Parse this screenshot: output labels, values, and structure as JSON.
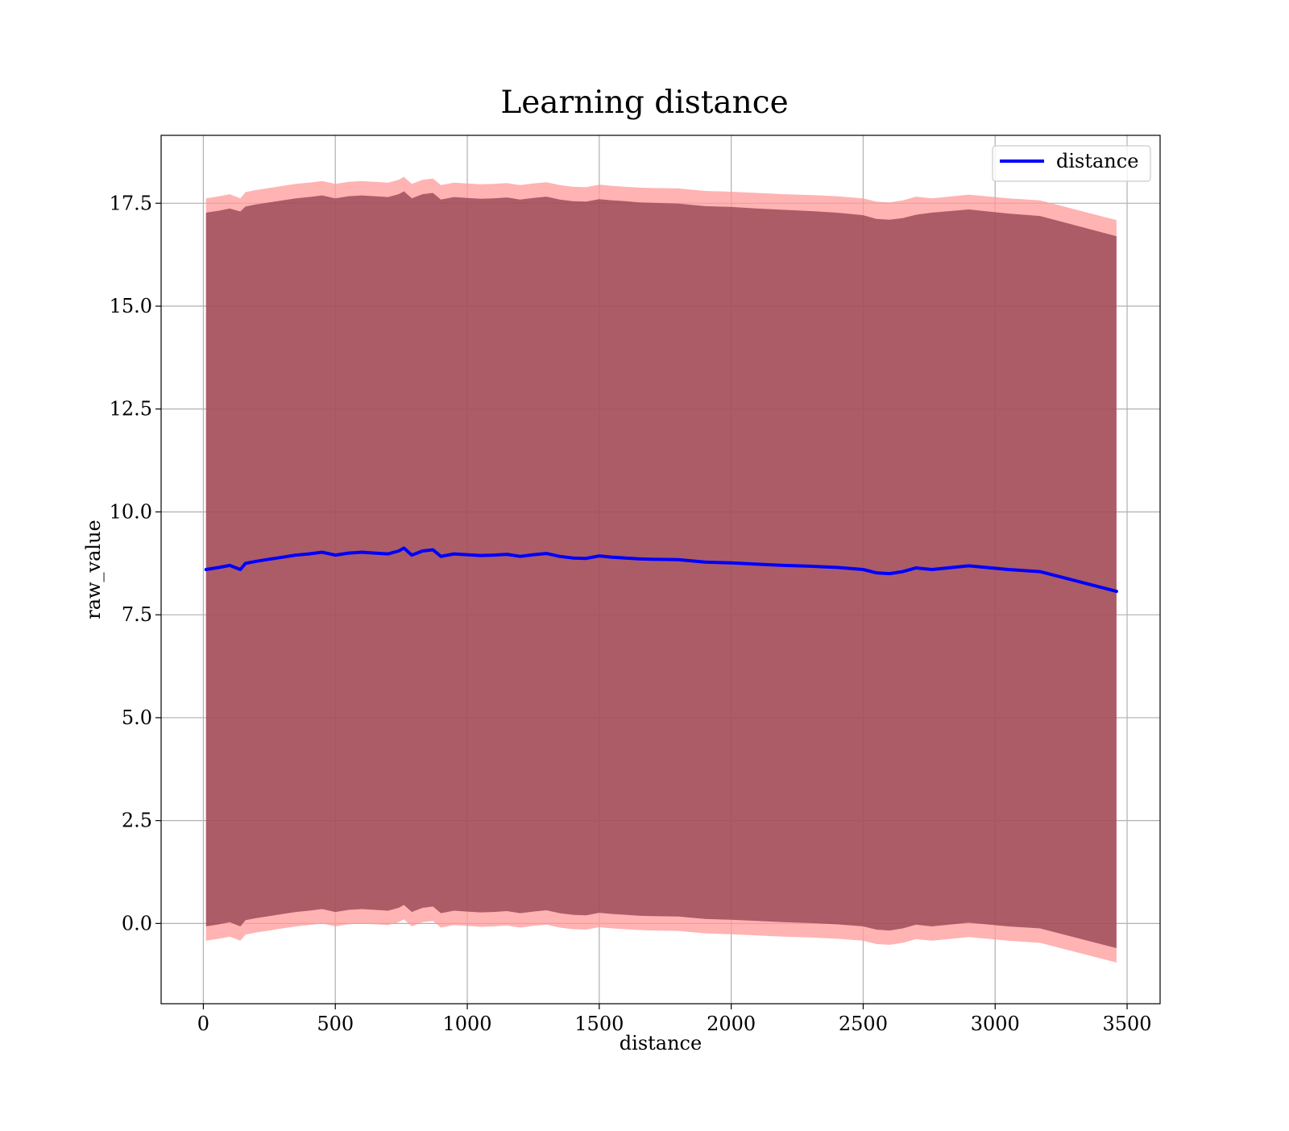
{
  "chart_data": {
    "type": "line",
    "title": "Learning distance",
    "xlabel": "distance",
    "ylabel": "raw_value",
    "xlim": [
      -160,
      3625
    ],
    "ylim": [
      -1.95,
      19.15
    ],
    "x_ticks": [
      0,
      500,
      1000,
      1500,
      2000,
      2500,
      3000,
      3500
    ],
    "y_ticks": [
      0.0,
      2.5,
      5.0,
      7.5,
      10.0,
      12.5,
      15.0,
      17.5
    ],
    "x_tick_labels": [
      "0",
      "500",
      "1000",
      "1500",
      "2000",
      "2500",
      "3000",
      "3500"
    ],
    "y_tick_labels": [
      "0.0",
      "2.5",
      "5.0",
      "7.5",
      "10.0",
      "12.5",
      "15.0",
      "17.5"
    ],
    "grid": true,
    "legend_position": "top-right",
    "colors": {
      "line": "#0000ff",
      "outer_band": "#ff9999",
      "inner_band": "#8b3a4a",
      "grid": "#b0b0b0"
    },
    "series": [
      {
        "name": "distance",
        "x": [
          10,
          60,
          100,
          140,
          160,
          200,
          250,
          300,
          350,
          400,
          450,
          500,
          550,
          600,
          650,
          700,
          740,
          760,
          790,
          830,
          870,
          900,
          950,
          1000,
          1050,
          1100,
          1150,
          1200,
          1250,
          1300,
          1350,
          1400,
          1450,
          1500,
          1550,
          1600,
          1650,
          1700,
          1800,
          1900,
          2000,
          2100,
          2200,
          2300,
          2400,
          2500,
          2550,
          2600,
          2650,
          2700,
          2760,
          2900,
          3050,
          3170,
          3460
        ],
        "y": [
          8.6,
          8.65,
          8.7,
          8.6,
          8.75,
          8.8,
          8.85,
          8.9,
          8.95,
          8.98,
          9.02,
          8.95,
          9.0,
          9.02,
          9.0,
          8.98,
          9.05,
          9.12,
          8.95,
          9.05,
          9.08,
          8.92,
          8.98,
          8.96,
          8.94,
          8.95,
          8.97,
          8.92,
          8.96,
          8.99,
          8.92,
          8.88,
          8.87,
          8.93,
          8.9,
          8.88,
          8.86,
          8.85,
          8.84,
          8.78,
          8.76,
          8.73,
          8.7,
          8.68,
          8.65,
          8.6,
          8.52,
          8.5,
          8.55,
          8.64,
          8.6,
          8.69,
          8.6,
          8.55,
          8.07
        ]
      }
    ],
    "bands": [
      {
        "role": "outer",
        "x": [
          10,
          60,
          100,
          140,
          160,
          200,
          250,
          300,
          350,
          400,
          450,
          500,
          550,
          600,
          650,
          700,
          740,
          760,
          790,
          830,
          870,
          900,
          950,
          1000,
          1050,
          1100,
          1150,
          1200,
          1250,
          1300,
          1350,
          1400,
          1450,
          1500,
          1550,
          1600,
          1650,
          1700,
          1800,
          1900,
          2000,
          2100,
          2200,
          2300,
          2400,
          2500,
          2550,
          2600,
          2650,
          2700,
          2760,
          2900,
          3050,
          3170,
          3460
        ],
        "upper": [
          17.62,
          17.67,
          17.72,
          17.62,
          17.77,
          17.82,
          17.87,
          17.92,
          17.97,
          18.0,
          18.04,
          17.97,
          18.02,
          18.04,
          18.02,
          18.0,
          18.07,
          18.14,
          17.97,
          18.07,
          18.1,
          17.94,
          18.0,
          17.98,
          17.96,
          17.97,
          17.99,
          17.94,
          17.98,
          18.01,
          17.94,
          17.9,
          17.89,
          17.95,
          17.92,
          17.9,
          17.88,
          17.87,
          17.86,
          17.8,
          17.78,
          17.75,
          17.72,
          17.7,
          17.67,
          17.62,
          17.54,
          17.52,
          17.57,
          17.66,
          17.62,
          17.71,
          17.62,
          17.57,
          17.09
        ],
        "lower": [
          -0.42,
          -0.37,
          -0.32,
          -0.42,
          -0.27,
          -0.22,
          -0.17,
          -0.12,
          -0.07,
          -0.04,
          0.0,
          -0.07,
          -0.02,
          0.0,
          -0.02,
          -0.04,
          0.03,
          0.1,
          -0.07,
          0.03,
          0.06,
          -0.1,
          -0.04,
          -0.06,
          -0.08,
          -0.07,
          -0.05,
          -0.1,
          -0.06,
          -0.03,
          -0.1,
          -0.14,
          -0.15,
          -0.09,
          -0.12,
          -0.14,
          -0.16,
          -0.17,
          -0.18,
          -0.24,
          -0.26,
          -0.29,
          -0.32,
          -0.34,
          -0.37,
          -0.42,
          -0.5,
          -0.52,
          -0.47,
          -0.38,
          -0.42,
          -0.33,
          -0.42,
          -0.47,
          -0.95
        ]
      },
      {
        "role": "inner",
        "x": [
          10,
          60,
          100,
          140,
          160,
          200,
          250,
          300,
          350,
          400,
          450,
          500,
          550,
          600,
          650,
          700,
          740,
          760,
          790,
          830,
          870,
          900,
          950,
          1000,
          1050,
          1100,
          1150,
          1200,
          1250,
          1300,
          1350,
          1400,
          1450,
          1500,
          1550,
          1600,
          1650,
          1700,
          1800,
          1900,
          2000,
          2100,
          2200,
          2300,
          2400,
          2500,
          2550,
          2600,
          2650,
          2700,
          2760,
          2900,
          3050,
          3170,
          3460
        ],
        "upper": [
          17.27,
          17.32,
          17.37,
          17.3,
          17.42,
          17.47,
          17.52,
          17.57,
          17.62,
          17.65,
          17.69,
          17.62,
          17.67,
          17.69,
          17.67,
          17.65,
          17.72,
          17.79,
          17.62,
          17.72,
          17.75,
          17.59,
          17.65,
          17.63,
          17.61,
          17.62,
          17.64,
          17.59,
          17.63,
          17.66,
          17.59,
          17.55,
          17.54,
          17.6,
          17.57,
          17.55,
          17.52,
          17.51,
          17.49,
          17.43,
          17.41,
          17.37,
          17.34,
          17.31,
          17.27,
          17.21,
          17.12,
          17.1,
          17.14,
          17.22,
          17.27,
          17.35,
          17.25,
          17.19,
          16.7
        ],
        "lower": [
          -0.07,
          -0.02,
          0.03,
          -0.07,
          0.08,
          0.13,
          0.18,
          0.23,
          0.28,
          0.31,
          0.35,
          0.28,
          0.33,
          0.35,
          0.33,
          0.31,
          0.38,
          0.45,
          0.28,
          0.38,
          0.41,
          0.25,
          0.31,
          0.29,
          0.27,
          0.28,
          0.3,
          0.25,
          0.29,
          0.32,
          0.25,
          0.21,
          0.2,
          0.26,
          0.23,
          0.21,
          0.19,
          0.18,
          0.17,
          0.11,
          0.09,
          0.06,
          0.03,
          0.01,
          -0.02,
          -0.07,
          -0.15,
          -0.17,
          -0.12,
          -0.03,
          -0.07,
          0.02,
          -0.07,
          -0.12,
          -0.6
        ]
      }
    ]
  }
}
